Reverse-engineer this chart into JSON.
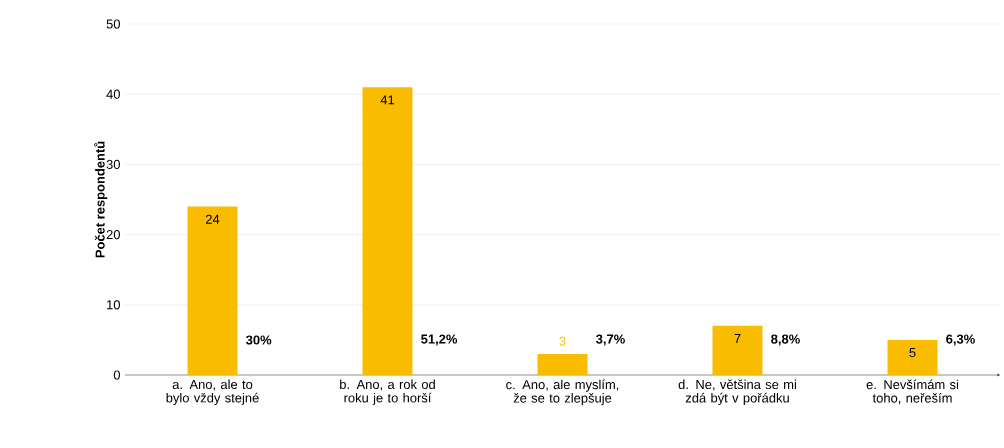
{
  "chart_data": {
    "type": "bar",
    "ylabel": "Počet respondentů",
    "categories": [
      "a. Ano, ale to bylo vždy stejné",
      "b. Ano, a rok od roku je to horší",
      "c. Ano, ale myslím, že se to zlepšuje",
      "d. Ne, většina se mi zdá být v pořádku",
      "e. Nevšímám si toho, neřeším"
    ],
    "values": [
      24,
      41,
      3,
      7,
      5
    ],
    "color": "#f9bc00",
    "data_labels": true,
    "ylim": [
      0,
      50
    ],
    "yticks": [
      0,
      10,
      20,
      30,
      40,
      50
    ],
    "grid": "y",
    "annotations": [
      "30%",
      "51,2%",
      "3,7%",
      "8,8%",
      "6,3%"
    ]
  }
}
